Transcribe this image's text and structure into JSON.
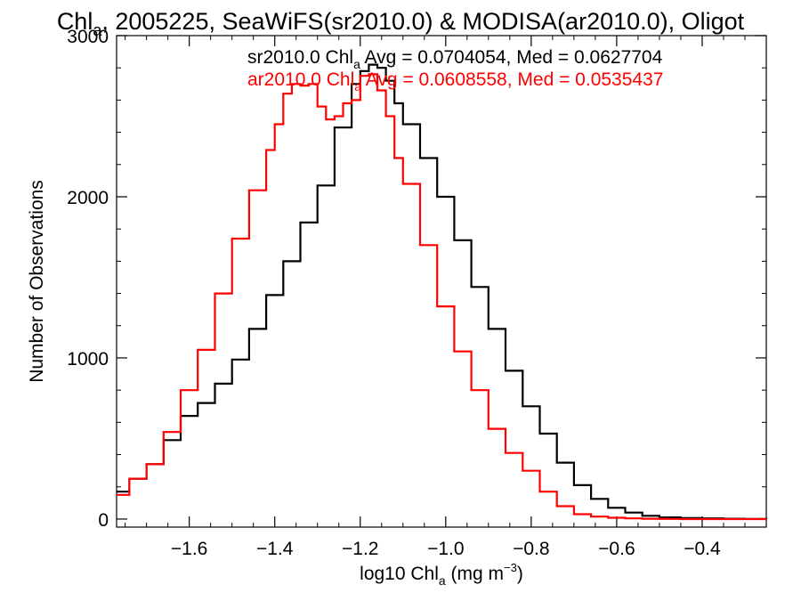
{
  "chart_data": {
    "type": "line",
    "title": {
      "main": "Chl",
      "sub": "a",
      "rest": ", 2005225, SeaWiFS(sr2010.0) & MODISA(ar2010.0), Oligot"
    },
    "xlabel": {
      "main": "log10 Chl",
      "sub": "a",
      "mid": " (mg m",
      "sup": "−3",
      "end": ")"
    },
    "ylabel": "Number of Observations",
    "xlim": [
      -1.77,
      -0.25
    ],
    "ylim": [
      -50,
      3000
    ],
    "x_ticks": [
      -1.6,
      -1.4,
      -1.2,
      -1.0,
      -0.8,
      -0.6,
      -0.4
    ],
    "x_tick_labels": [
      "−1.6",
      "−1.4",
      "−1.2",
      "−1.0",
      "−0.8",
      "−0.6",
      "−0.4"
    ],
    "y_ticks": [
      0,
      1000,
      2000,
      3000
    ],
    "y_tick_labels": [
      "0",
      "1000",
      "2000",
      "3000"
    ],
    "legend_position": "top-right",
    "series": [
      {
        "name": "sr2010.0",
        "color": "#000000",
        "legend": {
          "pre": "sr2010.0 Chl",
          "sub": "a",
          "post": " Avg = 0.0704054, Med = 0.0627704"
        },
        "x": [
          -1.77,
          -1.74,
          -1.7,
          -1.66,
          -1.62,
          -1.58,
          -1.54,
          -1.5,
          -1.46,
          -1.42,
          -1.38,
          -1.34,
          -1.3,
          -1.26,
          -1.22,
          -1.2,
          -1.18,
          -1.16,
          -1.14,
          -1.12,
          -1.1,
          -1.06,
          -1.02,
          -0.98,
          -0.94,
          -0.9,
          -0.86,
          -0.82,
          -0.78,
          -0.74,
          -0.7,
          -0.66,
          -0.62,
          -0.58,
          -0.54,
          -0.5,
          -0.45,
          -0.4,
          -0.35,
          -0.3,
          -0.25
        ],
        "y": [
          170,
          250,
          340,
          490,
          640,
          720,
          840,
          990,
          1180,
          1390,
          1600,
          1840,
          2070,
          2430,
          2700,
          2780,
          2820,
          2800,
          2720,
          2580,
          2450,
          2240,
          2000,
          1730,
          1440,
          1180,
          920,
          700,
          530,
          350,
          210,
          125,
          70,
          40,
          20,
          10,
          6,
          4,
          2,
          1,
          0
        ]
      },
      {
        "name": "ar2010.0",
        "color": "#ff0000",
        "legend": {
          "pre": "ar2010.0 Chl",
          "sub": "a",
          "post": " Avg = 0.0608558, Med = 0.0535437"
        },
        "x": [
          -1.77,
          -1.74,
          -1.7,
          -1.66,
          -1.62,
          -1.58,
          -1.54,
          -1.5,
          -1.46,
          -1.42,
          -1.4,
          -1.38,
          -1.36,
          -1.34,
          -1.32,
          -1.3,
          -1.28,
          -1.26,
          -1.24,
          -1.22,
          -1.2,
          -1.18,
          -1.16,
          -1.14,
          -1.12,
          -1.1,
          -1.06,
          -1.02,
          -0.98,
          -0.94,
          -0.9,
          -0.86,
          -0.82,
          -0.78,
          -0.74,
          -0.7,
          -0.66,
          -0.62,
          -0.58,
          -0.54,
          -0.5,
          -0.45,
          -0.4,
          -0.35,
          -0.3,
          -0.25
        ],
        "y": [
          150,
          250,
          340,
          540,
          800,
          1050,
          1400,
          1740,
          2040,
          2290,
          2450,
          2640,
          2700,
          2690,
          2700,
          2560,
          2480,
          2500,
          2580,
          2600,
          2750,
          2760,
          2660,
          2500,
          2240,
          2080,
          1700,
          1320,
          1040,
          800,
          560,
          410,
          300,
          170,
          80,
          30,
          15,
          8,
          4,
          2,
          1,
          0,
          0,
          0,
          0,
          0
        ]
      }
    ]
  }
}
